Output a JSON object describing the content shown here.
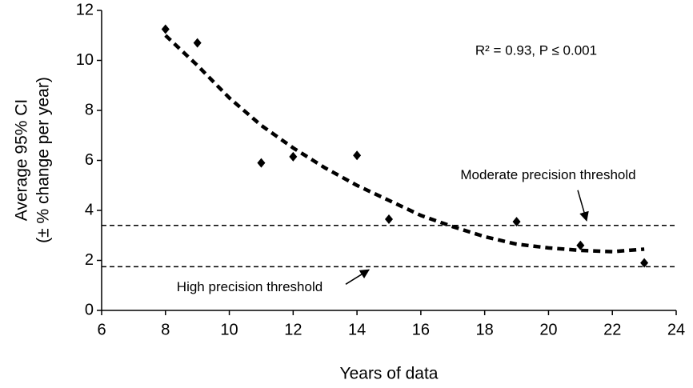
{
  "chart_data": {
    "type": "scatter",
    "x_label": "Years of data",
    "y_label": [
      "Average 95% CI",
      "(± % change per year)"
    ],
    "annotation": "R² = 0.93, P ≤ 0.001",
    "x": [
      8,
      9,
      11,
      12,
      14,
      15,
      19,
      21,
      23
    ],
    "values": [
      11.25,
      10.7,
      5.9,
      6.15,
      6.2,
      3.65,
      3.55,
      2.6,
      1.9
    ],
    "color": "#000000",
    "trend": {
      "x": [
        8,
        9,
        10,
        11,
        12,
        13,
        14,
        15,
        16,
        17,
        18,
        19,
        20,
        21,
        22,
        23
      ],
      "values": [
        11.0,
        9.8,
        8.5,
        7.4,
        6.5,
        5.7,
        5.0,
        4.4,
        3.8,
        3.35,
        2.95,
        2.65,
        2.5,
        2.4,
        2.35,
        2.45
      ]
    },
    "thresholds": [
      {
        "label": "Moderate precision threshold",
        "value": 3.4
      },
      {
        "label": "High precision threshold",
        "value": 1.75
      }
    ],
    "xlim": [
      6,
      24
    ],
    "xticks": [
      6,
      8,
      10,
      12,
      14,
      16,
      18,
      20,
      22,
      24
    ],
    "ylim": [
      0,
      12
    ],
    "yticks": [
      0,
      2,
      4,
      6,
      8,
      10,
      12
    ]
  }
}
